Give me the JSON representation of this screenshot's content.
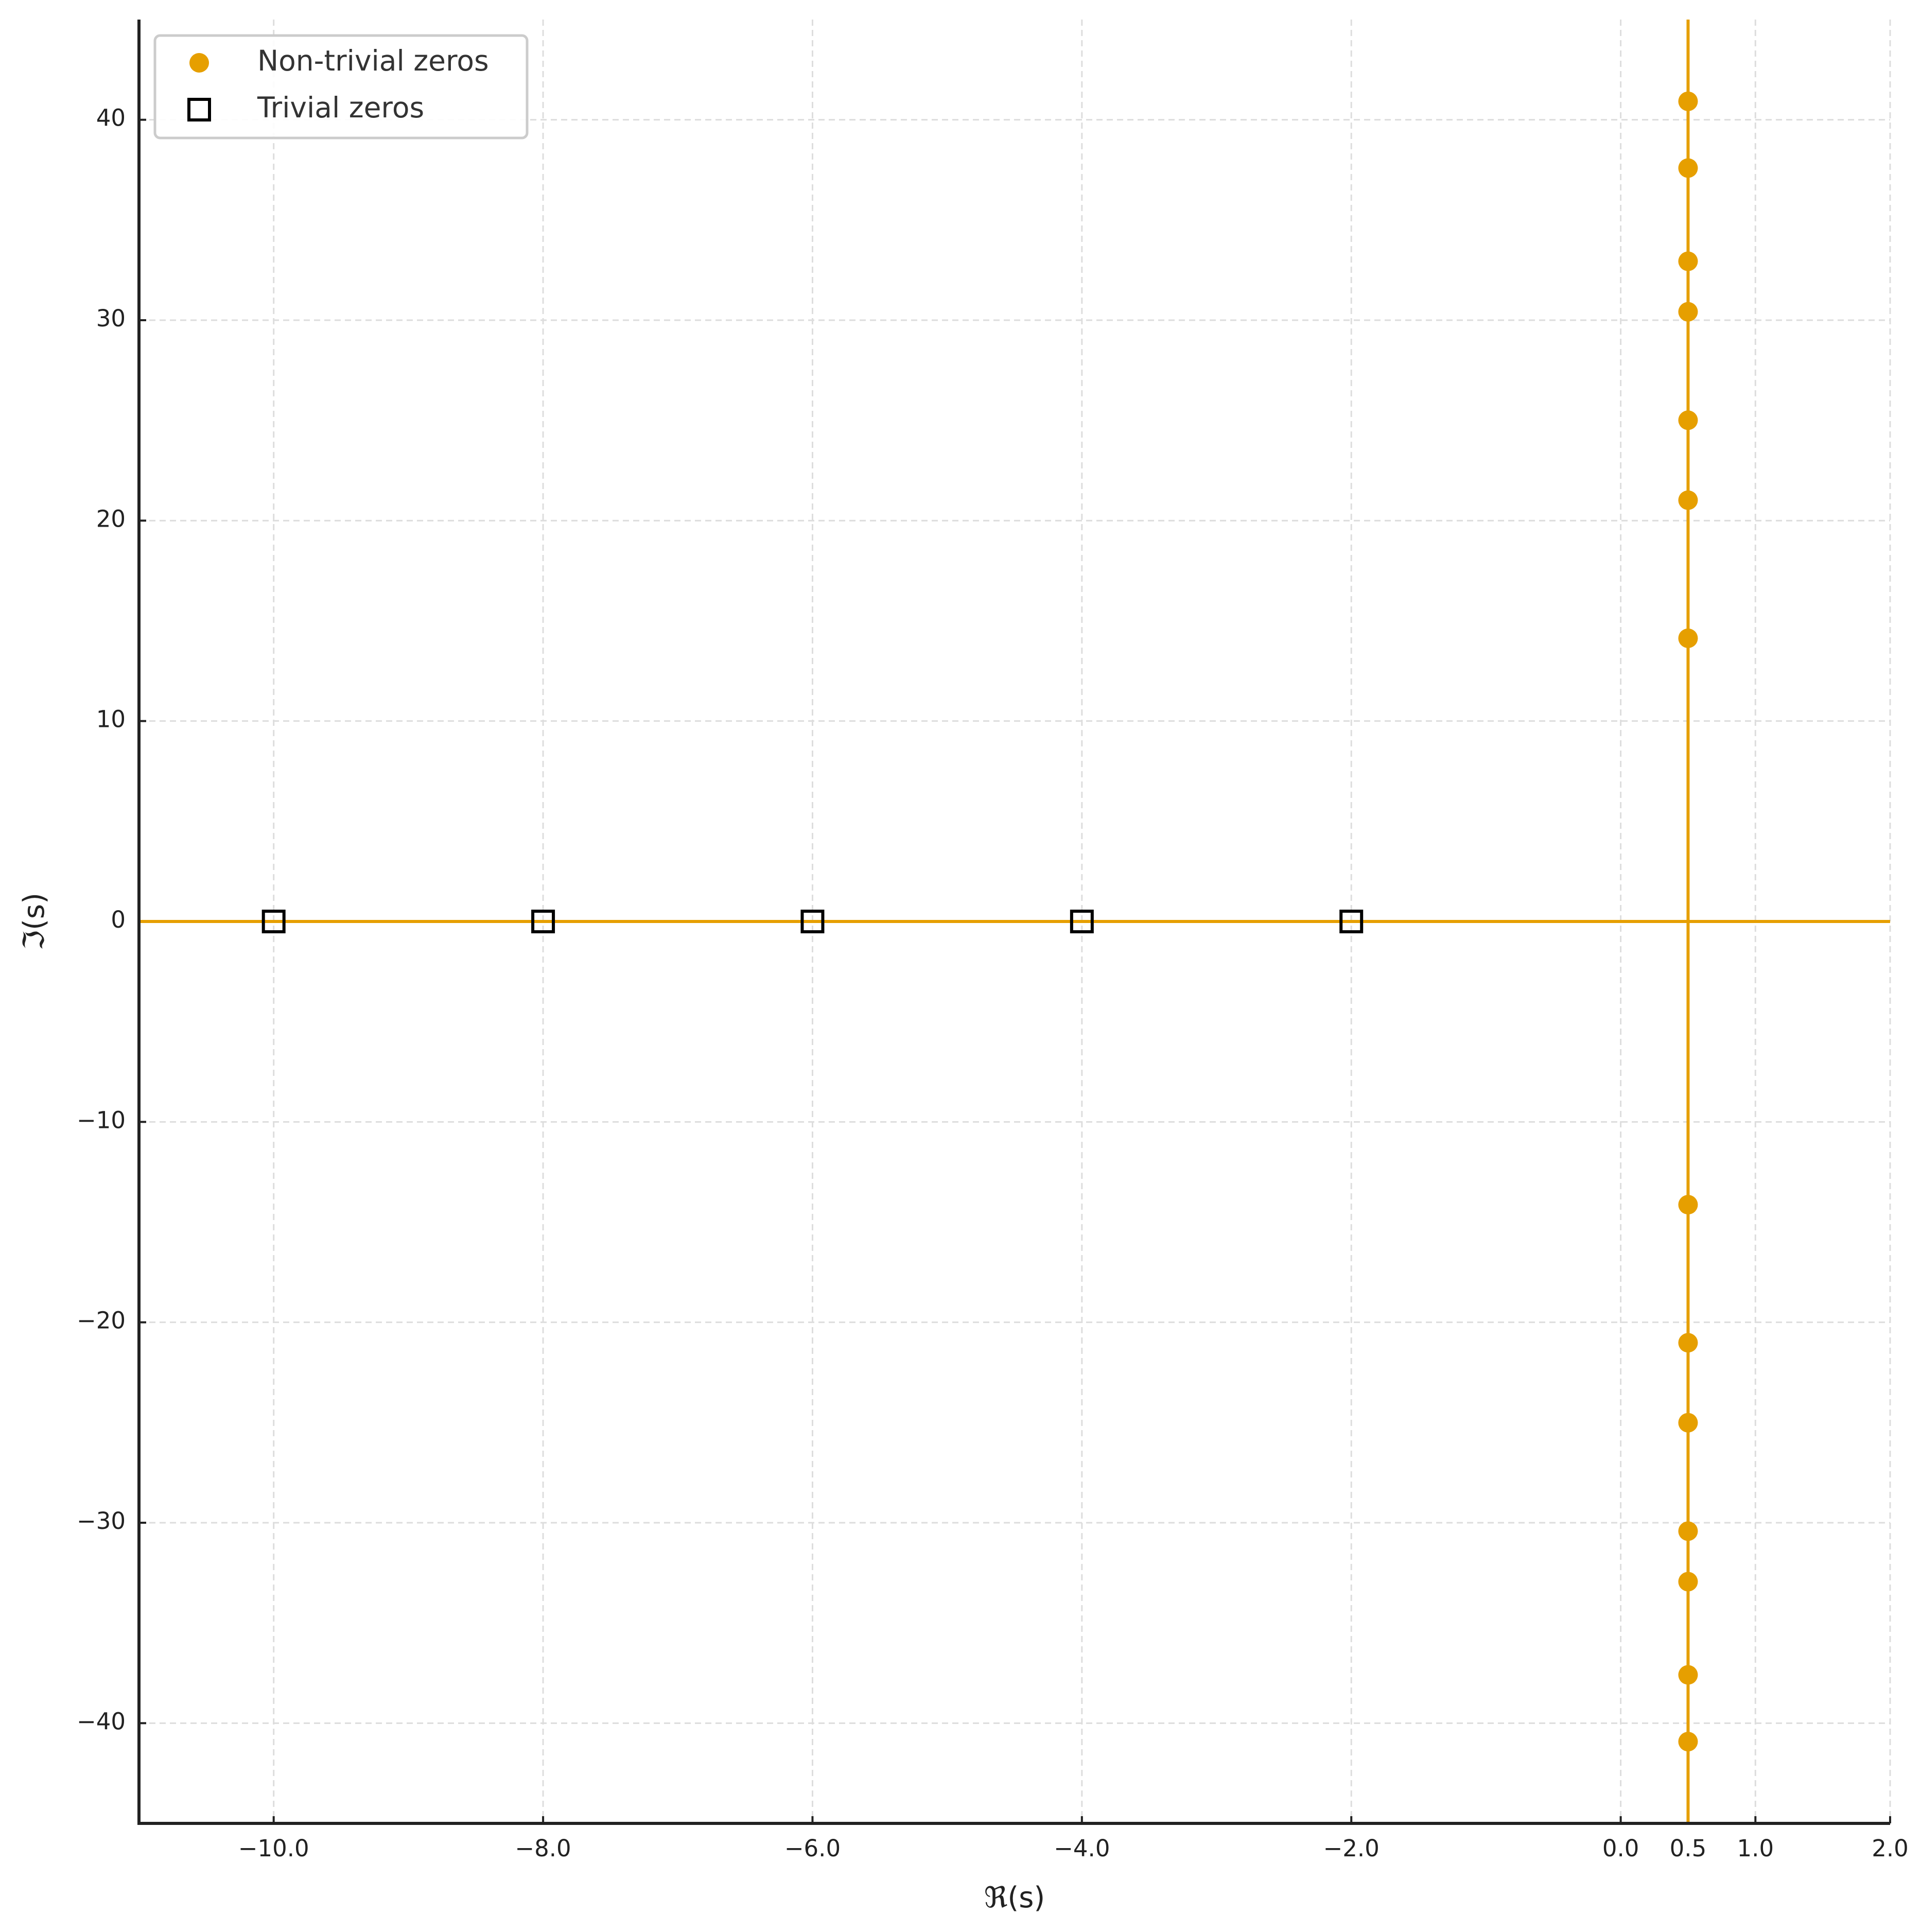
{
  "chart_data": {
    "type": "scatter",
    "x_label": "ℜ(s)",
    "y_label": "ℑ(s)",
    "xlim": [
      -11,
      2
    ],
    "ylim": [
      -45,
      45
    ],
    "xticks": [
      {
        "value": -10,
        "label": "−10.0"
      },
      {
        "value": -8,
        "label": "−8.0"
      },
      {
        "value": -6,
        "label": "−6.0"
      },
      {
        "value": -4,
        "label": "−4.0"
      },
      {
        "value": -2,
        "label": "−2.0"
      },
      {
        "value": 0,
        "label": "0.0"
      },
      {
        "value": 0.5,
        "label": "0.5"
      },
      {
        "value": 1,
        "label": "1.0"
      },
      {
        "value": 2,
        "label": "2.0"
      }
    ],
    "yticks": [
      {
        "value": -40,
        "label": "−40"
      },
      {
        "value": -30,
        "label": "−30"
      },
      {
        "value": -20,
        "label": "−20"
      },
      {
        "value": -10,
        "label": "−10"
      },
      0,
      10,
      20,
      30,
      40
    ],
    "grid": true,
    "legend": "upper left",
    "reference_lines": [
      {
        "axis": "x",
        "value": 0.5,
        "color": "#E69F00"
      },
      {
        "axis": "y",
        "value": 0,
        "color": "#E69F00"
      }
    ],
    "series": [
      {
        "name": "Non-trivial zeros",
        "color": "#E69F00",
        "marker": "circle",
        "x": [
          0.5,
          0.5,
          0.5,
          0.5,
          0.5,
          0.5,
          0.5,
          0.5,
          0.5,
          0.5,
          0.5,
          0.5,
          0.5,
          0.5
        ],
        "values": [
          14.13,
          21.02,
          25.01,
          30.42,
          32.94,
          37.59,
          40.92,
          -14.13,
          -21.02,
          -25.01,
          -30.42,
          -32.94,
          -37.59,
          -40.92
        ]
      },
      {
        "name": "Trivial zeros",
        "color": "#000000",
        "marker": "open-square",
        "x": [
          -2,
          -4,
          -6,
          -8,
          -10
        ],
        "values": [
          0,
          0,
          0,
          0,
          0
        ]
      }
    ]
  }
}
